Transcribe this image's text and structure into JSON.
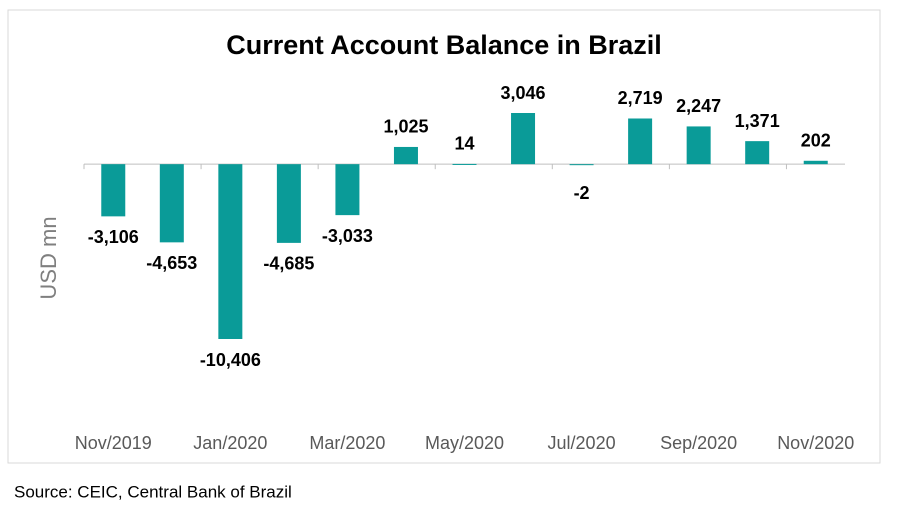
{
  "chart_data": {
    "type": "bar",
    "title": "Current Account Balance in Brazil",
    "y_label": "USD mn",
    "categories": [
      "Nov/2019",
      null,
      "Jan/2020",
      null,
      "Mar/2020",
      null,
      "May/2020",
      null,
      "Jul/2020",
      null,
      "Sep/2020",
      null,
      "Nov/2020"
    ],
    "values": [
      -3106,
      -4653,
      -10406,
      -4685,
      -3033,
      1025,
      14,
      3046,
      -2,
      2719,
      2247,
      1371,
      202
    ],
    "value_labels": [
      "-3,106",
      "-4,653",
      "-10,406",
      "-4,685",
      "-3,033",
      "1,025",
      "14",
      "3,046",
      "-2",
      "2,719",
      "2,247",
      "1,371",
      "202"
    ],
    "color": "#0a9b98",
    "source": "Source: CEIC, Central Bank of Brazil"
  }
}
